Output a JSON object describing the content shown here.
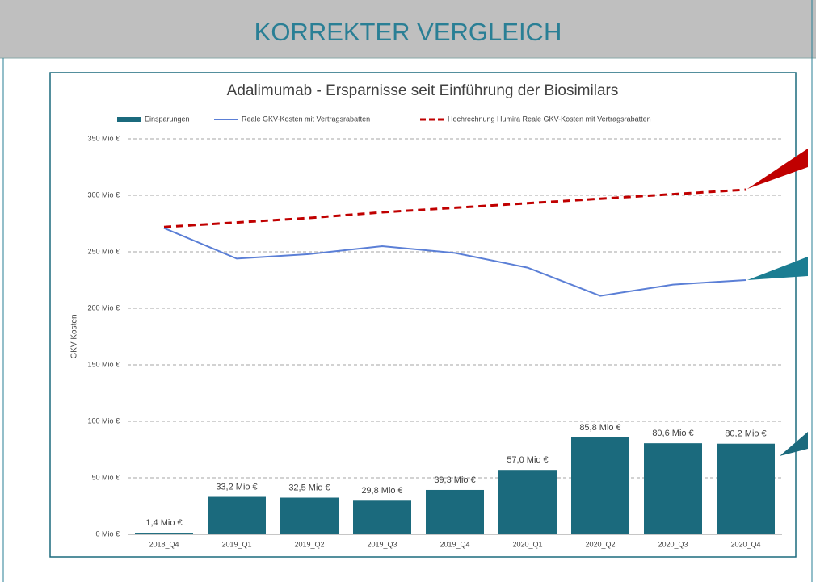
{
  "header": {
    "title": "KORREKTER VERGLEICH"
  },
  "chart_data": {
    "type": "bar",
    "title": "Adalimumab - Ersparnisse seit Einführung der Biosimilars",
    "y_label": "GKV-Kosten",
    "categories": [
      "2018_Q4",
      "2019_Q1",
      "2019_Q2",
      "2019_Q3",
      "2019_Q4",
      "2020_Q1",
      "2020_Q2",
      "2020_Q3",
      "2020_Q4"
    ],
    "series": [
      {
        "name": "Einsparungen",
        "type": "bar",
        "color": "#1b6a7d",
        "values": [
          1.4,
          33.2,
          32.5,
          29.8,
          39.3,
          57.0,
          85.8,
          80.6,
          80.2
        ],
        "value_labels": [
          "1,4 Mio €",
          "33,2 Mio €",
          "32,5 Mio €",
          "29,8 Mio €",
          "39,3 Mio €",
          "57,0 Mio €",
          "85,8 Mio €",
          "80,6 Mio €",
          "80,2 Mio €"
        ]
      },
      {
        "name": "Reale GKV-Kosten mit Vertragsrabatten",
        "type": "line",
        "color": "#5b7fd6",
        "values": [
          271,
          244,
          248,
          255,
          249,
          236,
          211,
          221,
          225
        ]
      },
      {
        "name": "Hochrechnung  Humira Reale  GKV-Kosten mit Vertragsrabatten",
        "type": "line",
        "dashed": true,
        "color": "#c00000",
        "values": [
          272,
          276,
          280,
          285,
          289,
          293,
          297,
          301,
          305
        ]
      }
    ],
    "ylim": [
      0,
      350
    ],
    "yticks": [
      {
        "value": 0,
        "label": "0 Mio €"
      },
      {
        "value": 50,
        "label": "50 Mio €"
      },
      {
        "value": 100,
        "label": "100 Mio €"
      },
      {
        "value": 150,
        "label": "150 Mio €"
      },
      {
        "value": 200,
        "label": "200 Mio €"
      },
      {
        "value": 250,
        "label": "250 Mio €"
      },
      {
        "value": 300,
        "label": "300 Mio €"
      },
      {
        "value": 350,
        "label": "350 Mio €"
      }
    ],
    "grid": true
  }
}
